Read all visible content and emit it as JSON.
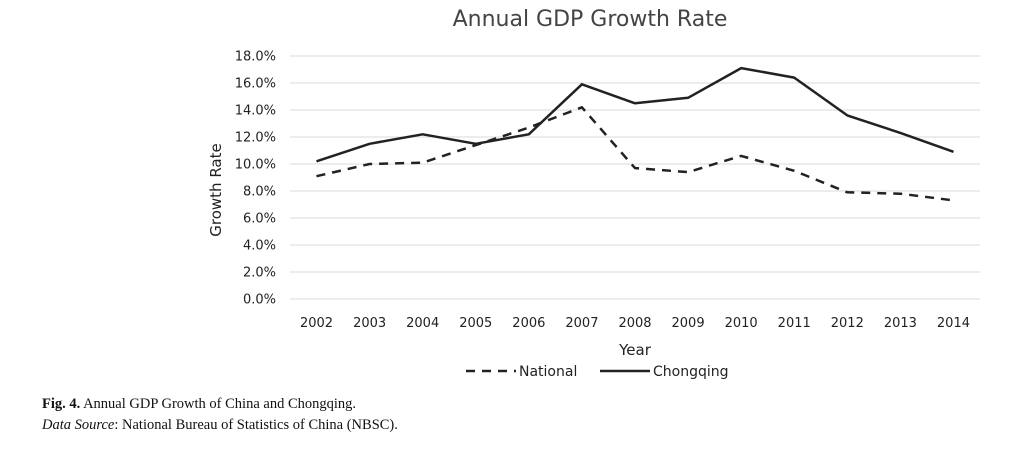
{
  "chart_data": {
    "type": "line",
    "title": "Annual GDP Growth Rate",
    "xlabel": "Year",
    "ylabel": "Growth Rate",
    "x": [
      "2002",
      "2003",
      "2004",
      "2005",
      "2006",
      "2007",
      "2008",
      "2009",
      "2010",
      "2011",
      "2012",
      "2013",
      "2014"
    ],
    "yticks": [
      "0.0%",
      "2.0%",
      "4.0%",
      "6.0%",
      "8.0%",
      "10.0%",
      "12.0%",
      "14.0%",
      "16.0%",
      "18.0%"
    ],
    "ylim": [
      0,
      18
    ],
    "grid": true,
    "legend_position": "bottom",
    "series": [
      {
        "name": "National",
        "style": "dashed",
        "color": "#222222",
        "values": [
          9.1,
          10.0,
          10.1,
          11.4,
          12.7,
          14.2,
          9.7,
          9.4,
          10.6,
          9.5,
          7.9,
          7.8,
          7.3
        ]
      },
      {
        "name": "Chongqing",
        "style": "solid",
        "color": "#222222",
        "values": [
          10.2,
          11.5,
          12.2,
          11.5,
          12.2,
          15.9,
          14.5,
          14.9,
          17.1,
          16.4,
          13.6,
          12.3,
          10.9
        ]
      }
    ]
  },
  "caption": {
    "fig_label": "Fig. 4.",
    "fig_text": " Annual GDP Growth of China and Chongqing.",
    "source_label": "Data Source",
    "source_text": ": National Bureau of Statistics of China (NBSC)."
  }
}
